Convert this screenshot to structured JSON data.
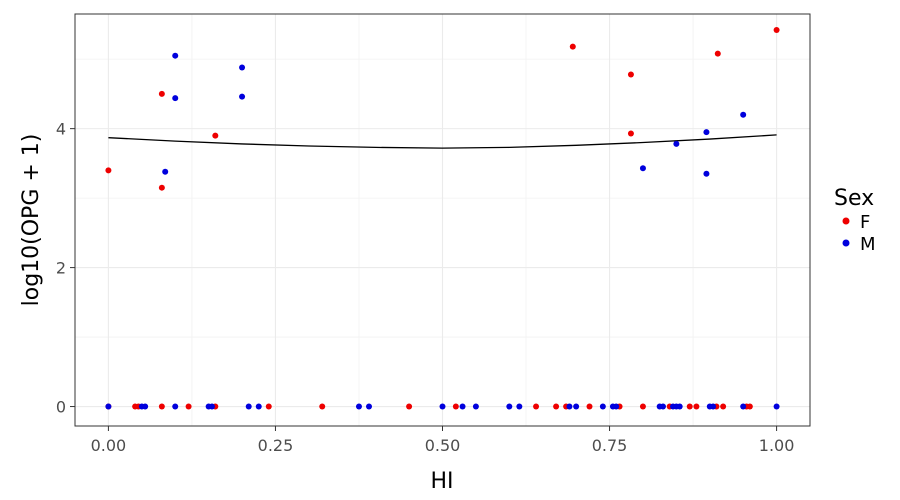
{
  "chart_data": {
    "type": "scatter",
    "xlabel": "HI",
    "ylabel": "log10(OPG + 1)",
    "xlim": [
      -0.05,
      1.05
    ],
    "ylim": [
      -0.28,
      5.65
    ],
    "x_ticks": [
      "0.00",
      "0.25",
      "0.50",
      "0.75",
      "1.00"
    ],
    "y_ticks": [
      "0",
      "2",
      "4"
    ],
    "x_tick_values": [
      0,
      0.25,
      0.5,
      0.75,
      1.0
    ],
    "y_tick_values": [
      0,
      2,
      4
    ],
    "grid": true,
    "legend": {
      "title": "Sex",
      "position": "right"
    },
    "series": [
      {
        "name": "F",
        "color": "#ee0000",
        "points": [
          [
            0.0,
            3.4
          ],
          [
            0.08,
            4.5
          ],
          [
            0.08,
            3.15
          ],
          [
            0.16,
            3.9
          ],
          [
            0.695,
            5.18
          ],
          [
            0.782,
            4.78
          ],
          [
            0.782,
            3.93
          ],
          [
            0.912,
            5.08
          ],
          [
            1.0,
            5.42
          ],
          [
            0.0,
            0
          ],
          [
            0.04,
            0
          ],
          [
            0.045,
            0
          ],
          [
            0.08,
            0
          ],
          [
            0.12,
            0
          ],
          [
            0.16,
            0
          ],
          [
            0.24,
            0
          ],
          [
            0.32,
            0
          ],
          [
            0.45,
            0
          ],
          [
            0.52,
            0
          ],
          [
            0.64,
            0
          ],
          [
            0.67,
            0
          ],
          [
            0.685,
            0
          ],
          [
            0.72,
            0
          ],
          [
            0.765,
            0
          ],
          [
            0.8,
            0
          ],
          [
            0.84,
            0
          ],
          [
            0.87,
            0
          ],
          [
            0.88,
            0
          ],
          [
            0.91,
            0
          ],
          [
            0.92,
            0
          ],
          [
            0.955,
            0
          ],
          [
            0.96,
            0
          ]
        ]
      },
      {
        "name": "M",
        "color": "#0000dd",
        "points": [
          [
            0.085,
            3.38
          ],
          [
            0.1,
            5.05
          ],
          [
            0.1,
            4.44
          ],
          [
            0.2,
            4.88
          ],
          [
            0.2,
            4.46
          ],
          [
            0.8,
            3.43
          ],
          [
            0.85,
            3.78
          ],
          [
            0.895,
            3.95
          ],
          [
            0.895,
            3.35
          ],
          [
            0.95,
            4.2
          ],
          [
            0.0,
            0
          ],
          [
            0.05,
            0
          ],
          [
            0.055,
            0
          ],
          [
            0.1,
            0
          ],
          [
            0.15,
            0
          ],
          [
            0.155,
            0
          ],
          [
            0.21,
            0
          ],
          [
            0.225,
            0
          ],
          [
            0.375,
            0
          ],
          [
            0.39,
            0
          ],
          [
            0.5,
            0
          ],
          [
            0.53,
            0
          ],
          [
            0.55,
            0
          ],
          [
            0.6,
            0
          ],
          [
            0.615,
            0
          ],
          [
            0.69,
            0
          ],
          [
            0.7,
            0
          ],
          [
            0.74,
            0
          ],
          [
            0.755,
            0
          ],
          [
            0.76,
            0
          ],
          [
            0.825,
            0
          ],
          [
            0.83,
            0
          ],
          [
            0.845,
            0
          ],
          [
            0.85,
            0
          ],
          [
            0.855,
            0
          ],
          [
            0.9,
            0
          ],
          [
            0.905,
            0
          ],
          [
            0.95,
            0
          ],
          [
            1.0,
            0
          ]
        ]
      }
    ],
    "smooth_line": {
      "color": "#000000",
      "points": [
        [
          0.0,
          3.87
        ],
        [
          0.1,
          3.82
        ],
        [
          0.2,
          3.78
        ],
        [
          0.3,
          3.75
        ],
        [
          0.4,
          3.73
        ],
        [
          0.5,
          3.72
        ],
        [
          0.6,
          3.73
        ],
        [
          0.7,
          3.76
        ],
        [
          0.8,
          3.8
        ],
        [
          0.9,
          3.85
        ],
        [
          1.0,
          3.91
        ]
      ]
    }
  }
}
